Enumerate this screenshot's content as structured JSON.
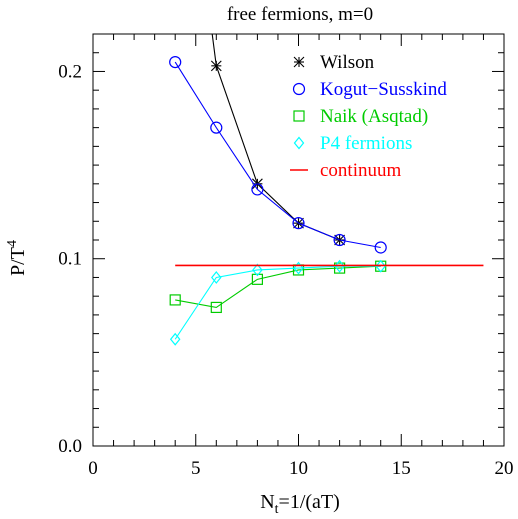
{
  "chart_data": {
    "type": "line",
    "title": "free fermions, m=0",
    "xlabel": {
      "main": "N",
      "sub": "t",
      "rest": "=1/(aT)"
    },
    "ylabel": {
      "main": "P/T",
      "sup": "4"
    },
    "xlim": [
      0,
      20
    ],
    "ylim": [
      0,
      0.22
    ],
    "x_ticks": [
      0,
      5,
      10,
      15,
      20
    ],
    "x_tick_labels": [
      "0",
      "5",
      "10",
      "15",
      "20"
    ],
    "y_ticks": [
      0.0,
      0.1,
      0.2
    ],
    "y_tick_labels": [
      "0.0",
      "0.1",
      "0.2"
    ],
    "grid": false,
    "legend_position": "top-right",
    "series": [
      {
        "name": "Wilson",
        "color": "#000000",
        "marker": "asterisk",
        "x": [
          5.8,
          6,
          8,
          10,
          12
        ],
        "y": [
          0.22,
          0.203,
          0.14,
          0.119,
          0.11
        ]
      },
      {
        "name": "Kogut−Susskind",
        "color": "#0000ff",
        "marker": "circle",
        "x": [
          4,
          6,
          8,
          10,
          12,
          14
        ],
        "y": [
          0.205,
          0.17,
          0.137,
          0.119,
          0.11,
          0.106
        ]
      },
      {
        "name": "Naik (Asqtad)",
        "color": "#00cc00",
        "marker": "square",
        "x": [
          4,
          6,
          8,
          10,
          12,
          14
        ],
        "y": [
          0.078,
          0.074,
          0.089,
          0.094,
          0.095,
          0.096
        ]
      },
      {
        "name": "P4 fermions",
        "color": "#00ffff",
        "marker": "diamond",
        "x": [
          4,
          6,
          8,
          10,
          12,
          14
        ],
        "y": [
          0.057,
          0.09,
          0.094,
          0.095,
          0.096,
          0.096
        ]
      },
      {
        "name": "continuum",
        "color": "#ff0000",
        "marker": "line",
        "x": [
          4,
          19
        ],
        "y": [
          0.0964,
          0.0964
        ]
      }
    ]
  }
}
